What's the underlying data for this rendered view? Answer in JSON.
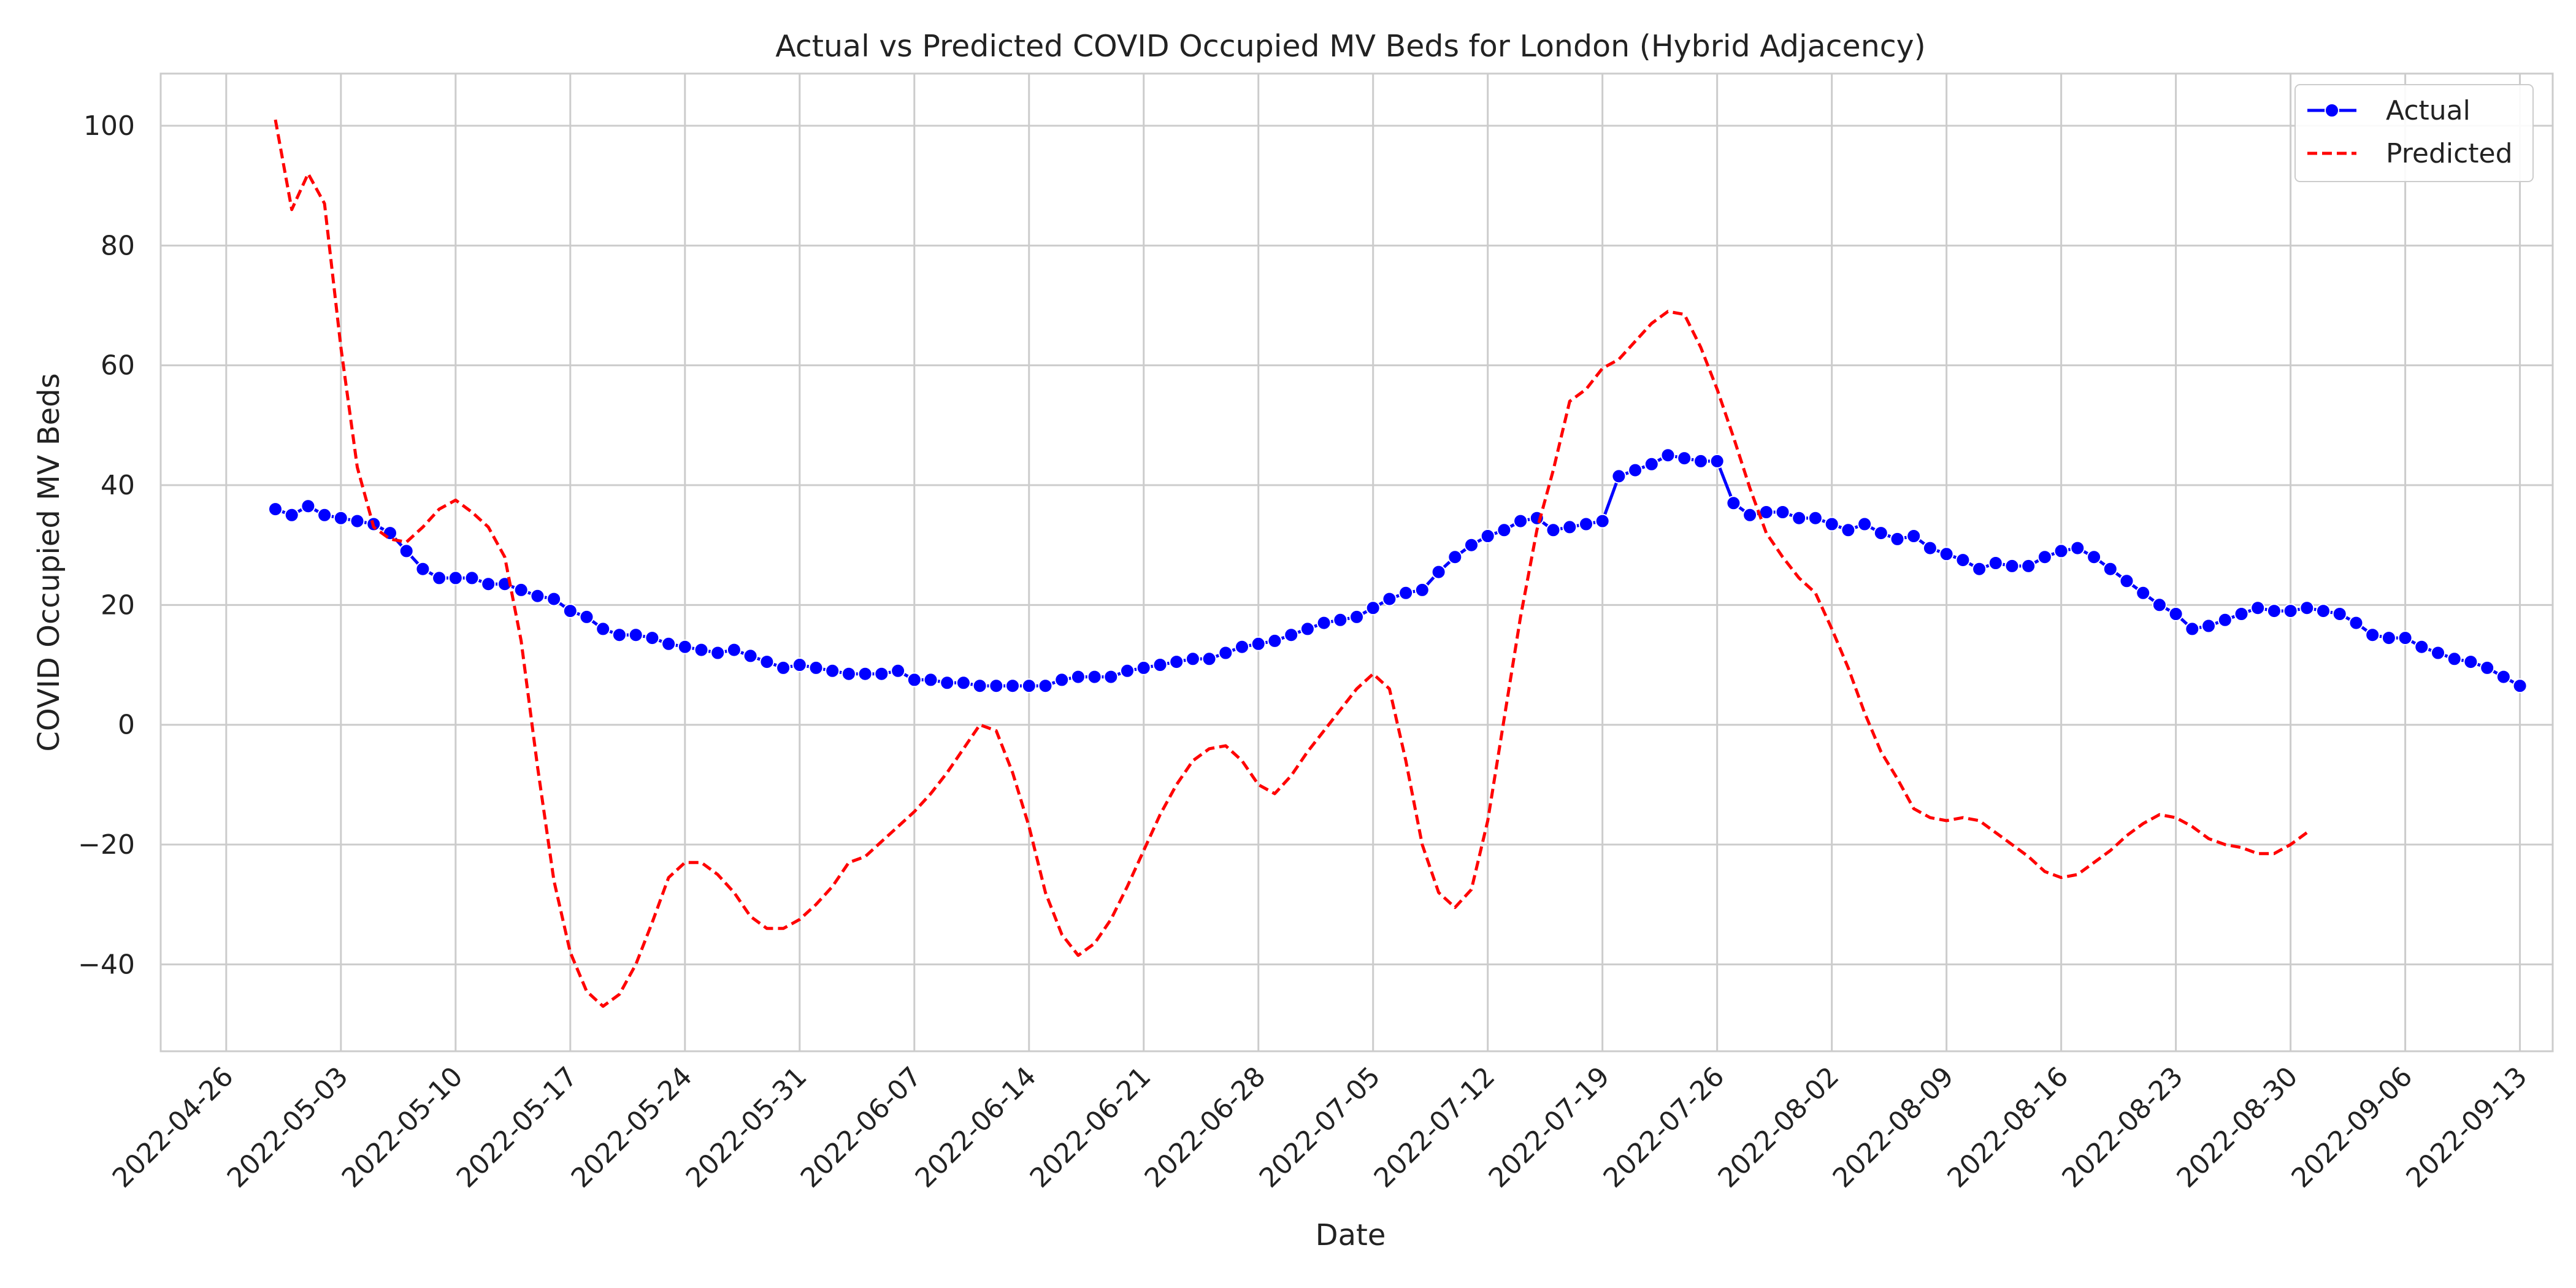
{
  "chart_data": {
    "type": "line",
    "title": "Actual vs Predicted COVID Occupied MV Beds for London (Hybrid Adjacency)",
    "xlabel": "Date",
    "ylabel": "COVID Occupied MV Beds",
    "x_start": "2022-04-29",
    "x_end": "2022-09-11",
    "xlim": [
      "2022-04-22",
      "2022-09-15"
    ],
    "ylim": [
      -54.5,
      108.7
    ],
    "x_ticks": [
      "2022-04-26",
      "2022-05-03",
      "2022-05-10",
      "2022-05-17",
      "2022-05-24",
      "2022-05-31",
      "2022-06-07",
      "2022-06-14",
      "2022-06-21",
      "2022-06-28",
      "2022-07-05",
      "2022-07-12",
      "2022-07-19",
      "2022-07-26",
      "2022-08-02",
      "2022-08-09",
      "2022-08-16",
      "2022-08-23",
      "2022-08-30",
      "2022-09-06",
      "2022-09-13"
    ],
    "y_ticks": [
      -40,
      -20,
      0,
      20,
      40,
      60,
      80,
      100
    ],
    "y_tick_labels": [
      "−40",
      "−20",
      "0",
      "20",
      "40",
      "60",
      "80",
      "100"
    ],
    "grid": true,
    "legend_position": "top-right",
    "series": [
      {
        "name": "Actual",
        "color": "#0000ff",
        "style": "solid",
        "marker": "circle",
        "values": [
          36,
          35,
          36.5,
          35,
          34.5,
          34,
          33.5,
          32,
          29,
          26,
          24.5,
          24.5,
          24.5,
          23.5,
          23.5,
          22.5,
          21.5,
          21,
          19,
          18,
          16,
          15,
          15,
          14.5,
          13.5,
          13,
          12.5,
          12,
          12.5,
          11.5,
          10.5,
          9.5,
          10,
          9.5,
          9,
          8.5,
          8.5,
          8.5,
          9,
          7.5,
          7.5,
          7,
          7,
          6.5,
          6.5,
          6.5,
          6.5,
          6.5,
          7.5,
          8,
          8,
          8,
          9,
          9.5,
          10,
          10.5,
          11,
          11,
          12,
          13,
          13.5,
          14,
          15,
          16,
          17,
          17.5,
          18,
          19.5,
          21,
          22,
          22.5,
          25.5,
          28,
          30,
          31.5,
          32.5,
          34,
          34.5,
          32.5,
          33,
          33.5,
          34,
          41.5,
          42.5,
          43.5,
          45,
          44.5,
          44,
          44,
          37,
          35,
          35.5,
          35.5,
          34.5,
          34.5,
          33.5,
          32.5,
          33.5,
          32,
          31,
          31.5,
          29.5,
          28.5,
          27.5,
          26,
          27,
          26.5,
          26.5,
          28,
          29,
          29.5,
          28,
          26,
          24,
          22,
          20,
          18.5,
          16,
          16.5,
          17.5,
          18.5,
          19.5,
          19,
          19,
          19.5,
          19,
          18.5,
          17,
          15,
          14.5,
          14.5,
          13,
          12,
          11,
          10.5,
          9.5,
          8,
          6.5
        ]
      },
      {
        "name": "Predicted",
        "color": "#ff0000",
        "style": "dashed",
        "marker": "none",
        "values": [
          101,
          86,
          92,
          87,
          63,
          43,
          33,
          31,
          30.5,
          33,
          36,
          37.5,
          35.5,
          33,
          28,
          14,
          -7,
          -26,
          -38,
          -44.5,
          -47,
          -45,
          -40,
          -33,
          -25.5,
          -23,
          -23,
          -25,
          -28,
          -32,
          -34,
          -34,
          -32.5,
          -30,
          -27,
          -23,
          -22,
          -19.5,
          -17,
          -14.5,
          -11.5,
          -8,
          -4,
          0,
          -1,
          -8,
          -17,
          -28,
          -35,
          -38.5,
          -36.5,
          -32.5,
          -27,
          -21,
          -15,
          -10,
          -6,
          -4,
          -3.5,
          -6,
          -10,
          -11.5,
          -8.5,
          -4.5,
          -1,
          2.5,
          6,
          8.5,
          6,
          -6,
          -20,
          -28,
          -30.5,
          -27.5,
          -16,
          1,
          18,
          32.5,
          42.5,
          54,
          56,
          59.5,
          61,
          64,
          67,
          69,
          68.5,
          63,
          56,
          48,
          39.5,
          32,
          28,
          24.5,
          22,
          16,
          9.5,
          2,
          -4.5,
          -9,
          -14,
          -15.5,
          -16,
          -15.5,
          -16,
          -18,
          -20,
          -22,
          -24.5,
          -25.5,
          -25,
          -23,
          -21,
          -18.5,
          -16.5,
          -15,
          -15.5,
          -17,
          -19,
          -20,
          -20.5,
          -21.5,
          -21.5,
          -20,
          -18
        ]
      }
    ]
  }
}
